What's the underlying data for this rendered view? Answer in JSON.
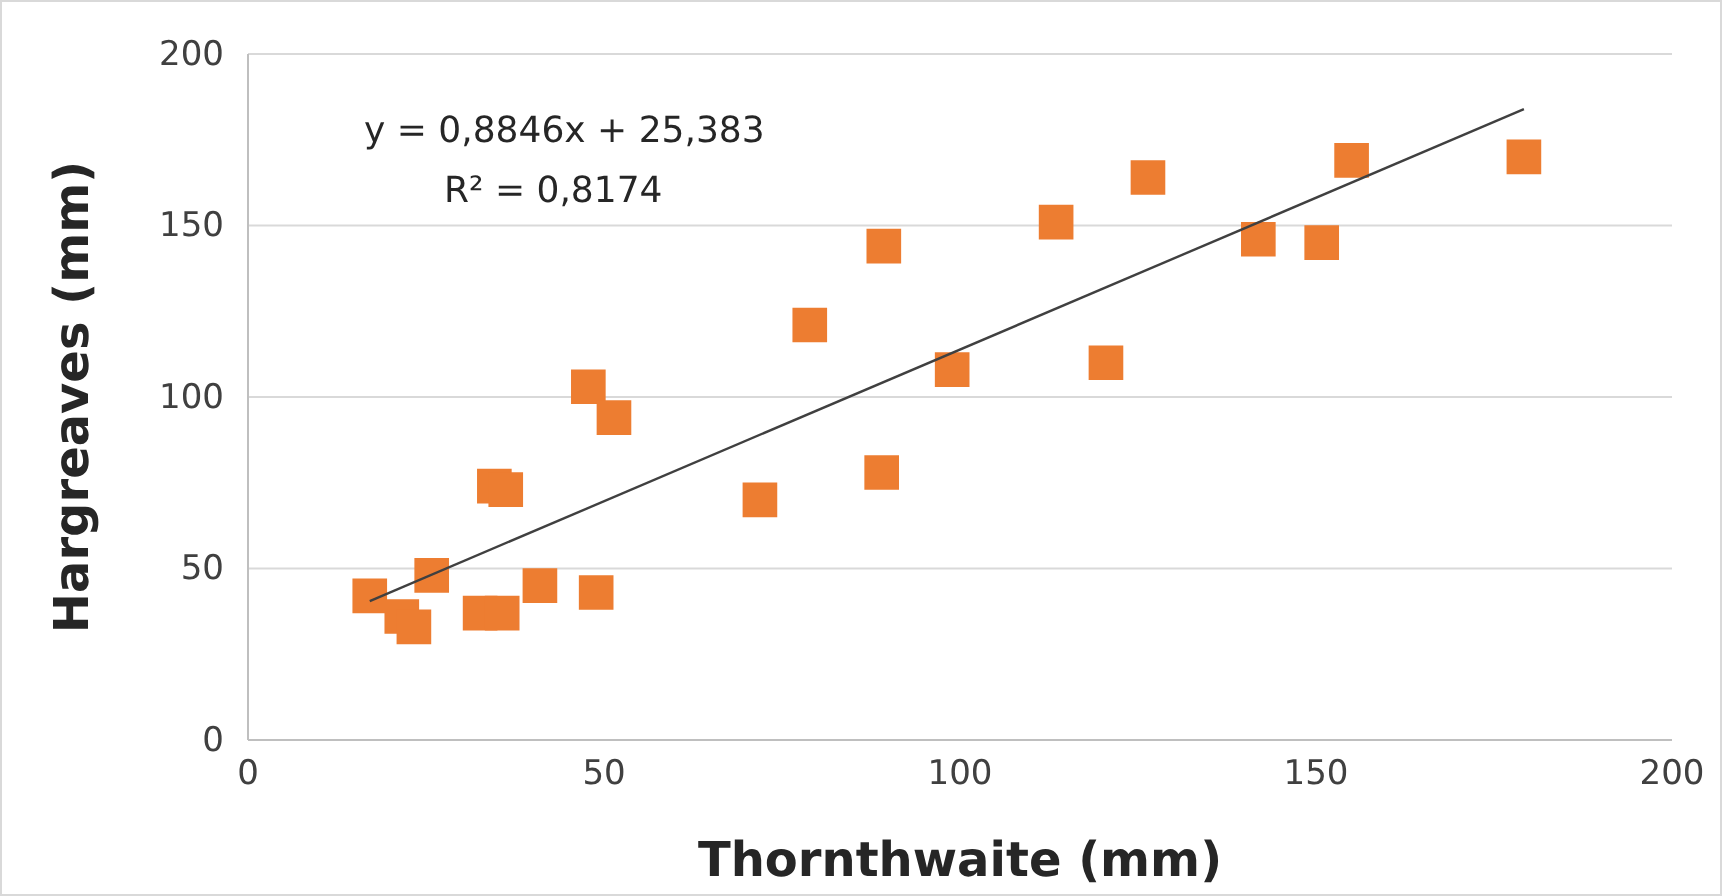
{
  "chart_data": {
    "type": "scatter",
    "xlabel": "Thornthwaite (mm)",
    "ylabel": "Hargreaves (mm)",
    "xlim": [
      0,
      200
    ],
    "xticks": [
      0,
      50,
      100,
      150,
      200
    ],
    "ylim": [
      0,
      200
    ],
    "yticks": [
      0,
      50,
      100,
      150,
      200
    ],
    "grid": "y",
    "annotations": [
      "y = 0,8846x + 25,383",
      "R² = 0,8174"
    ],
    "series": [
      {
        "marker": "square",
        "color": "#ed7d31",
        "x": [
          17.1,
          21.6,
          23.3,
          25.8,
          32.6,
          35.7,
          34.6,
          36.2,
          41,
          47.8,
          48.9,
          51.4,
          71.9,
          78.9,
          89,
          89.3,
          98.9,
          113.5,
          120.5,
          126.4,
          141.9,
          150.8,
          155,
          179.2
        ],
        "values": [
          42,
          36,
          33,
          48,
          37,
          37,
          74,
          73,
          45,
          103,
          43,
          94,
          70,
          121,
          78,
          144,
          108,
          151,
          110,
          164,
          146,
          145,
          169,
          170
        ]
      },
      {
        "type": "line",
        "color": "#404040",
        "x": [
          17.1,
          179.2
        ],
        "values": [
          40.5,
          183.9
        ]
      }
    ]
  }
}
